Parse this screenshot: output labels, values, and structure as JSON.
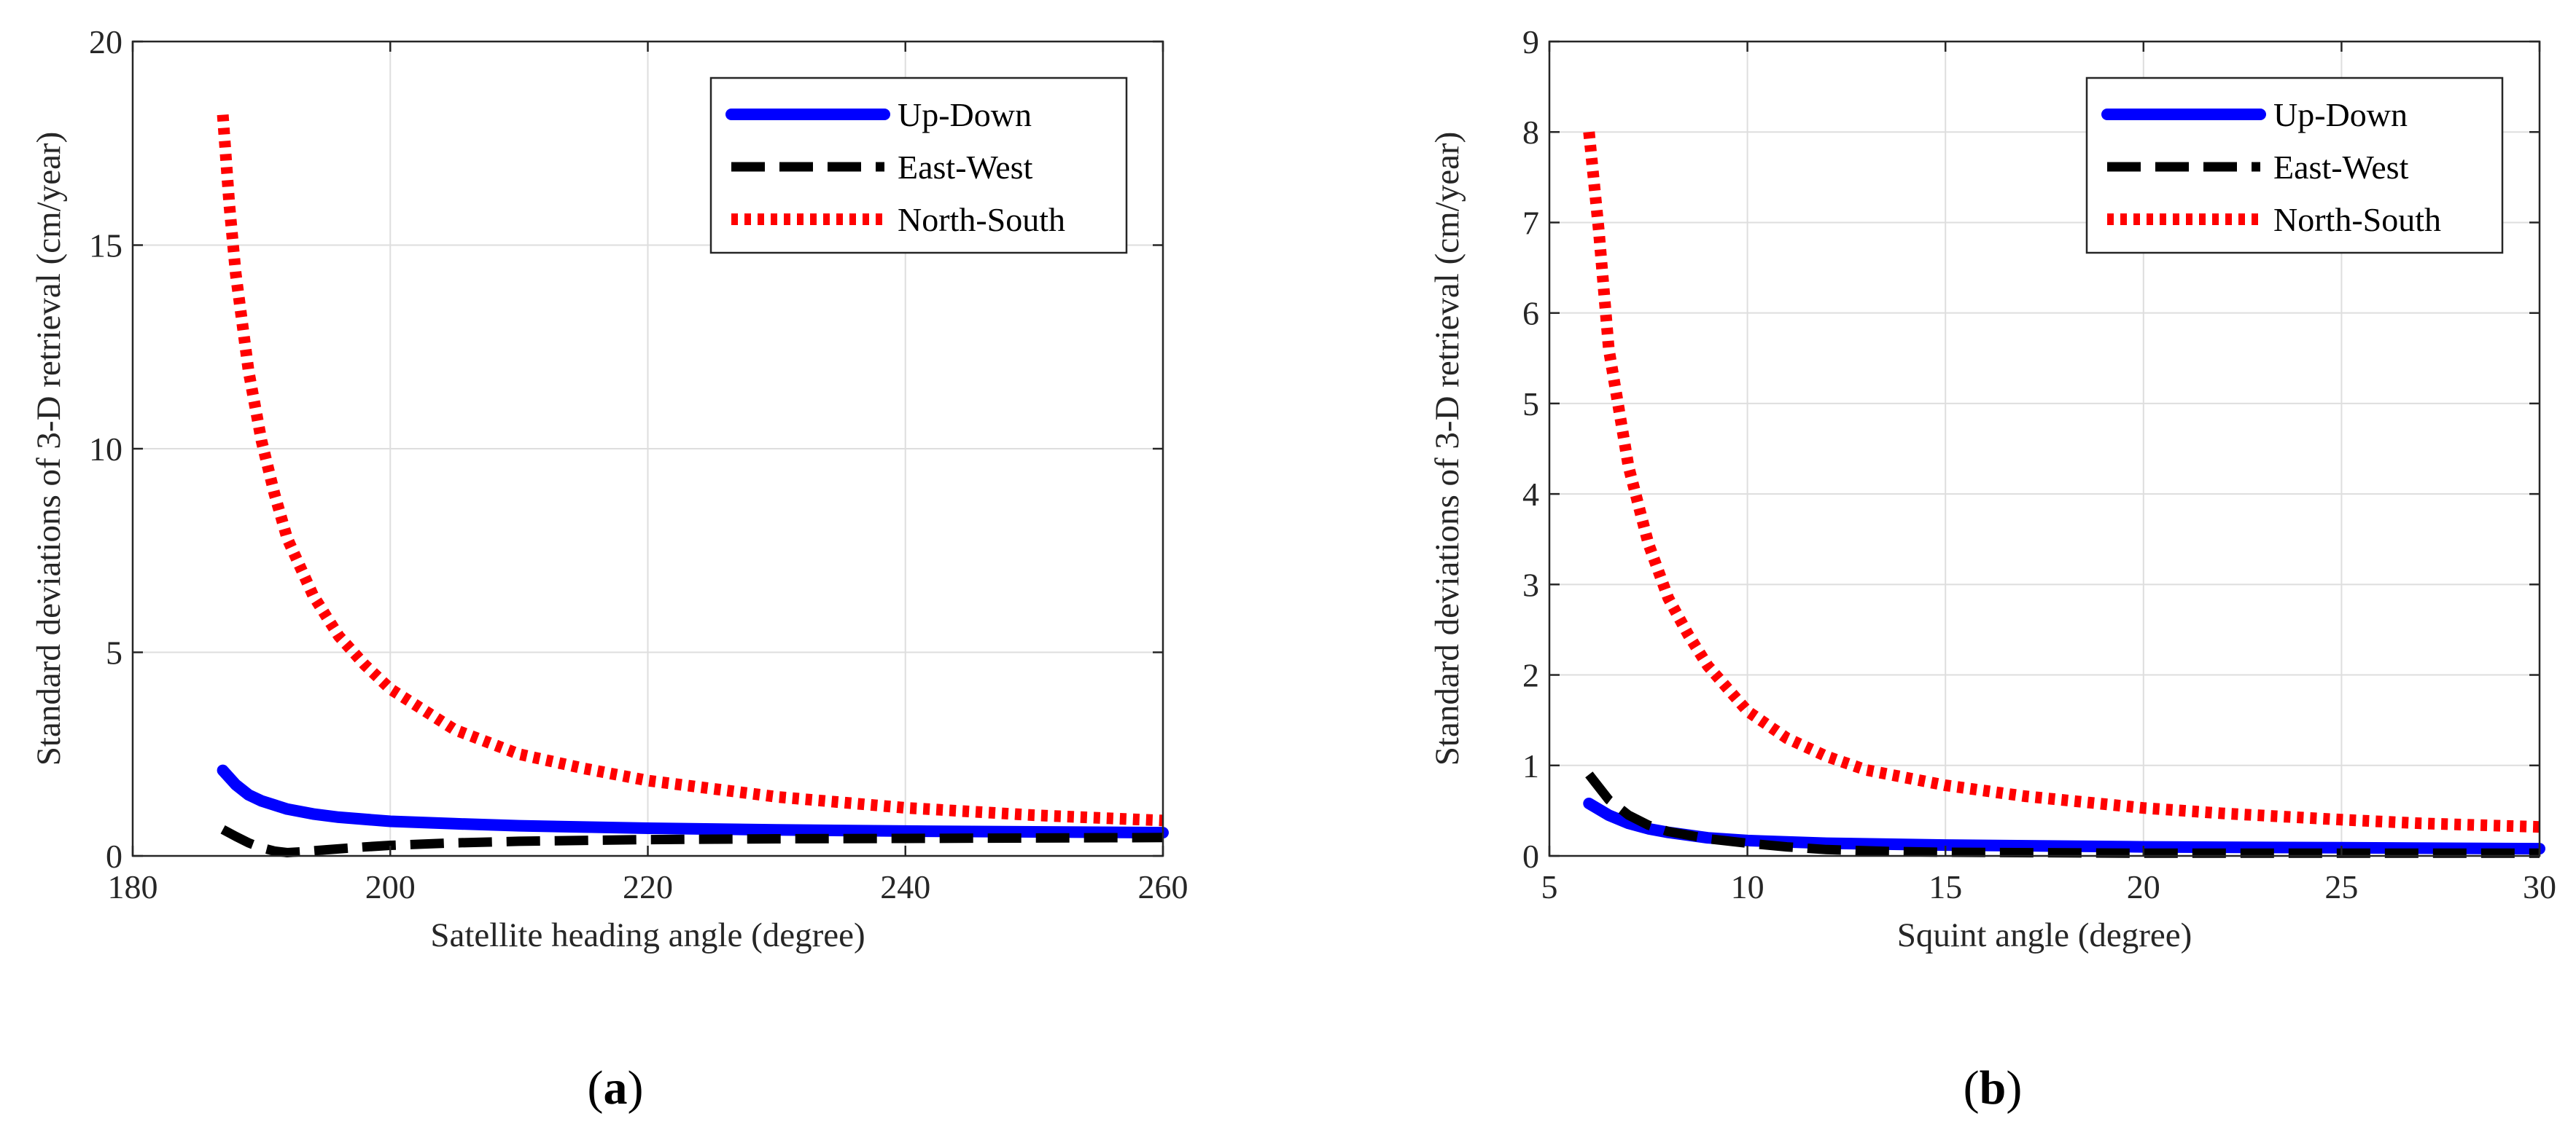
{
  "chart_data": [
    {
      "type": "line",
      "panel_id": "a",
      "caption_letter": "a",
      "xlabel": "Satellite heading angle (degree)",
      "ylabel": "Standard deviations of 3-D retrieval (cm/year)",
      "xlim": [
        180,
        260
      ],
      "ylim": [
        0,
        20
      ],
      "xticks": [
        180,
        200,
        220,
        240,
        260
      ],
      "yticks": [
        0,
        5,
        10,
        15,
        20
      ],
      "grid": true,
      "legend_position": "top-right",
      "series": [
        {
          "name": "Up-Down",
          "color": "#0000ff",
          "style": "solid",
          "x": [
            187,
            188,
            189,
            190,
            192,
            194,
            196,
            200,
            205,
            210,
            220,
            230,
            240,
            250,
            260
          ],
          "y": [
            2.1,
            1.75,
            1.5,
            1.35,
            1.15,
            1.03,
            0.95,
            0.85,
            0.79,
            0.74,
            0.68,
            0.64,
            0.61,
            0.59,
            0.57
          ]
        },
        {
          "name": "East-West",
          "color": "#000000",
          "style": "dashed",
          "x": [
            187,
            188,
            189,
            190,
            191,
            192,
            193,
            195,
            198,
            200,
            205,
            210,
            220,
            230,
            240,
            250,
            260
          ],
          "y": [
            0.65,
            0.48,
            0.32,
            0.2,
            0.12,
            0.08,
            0.1,
            0.15,
            0.22,
            0.26,
            0.32,
            0.36,
            0.4,
            0.42,
            0.43,
            0.44,
            0.45
          ]
        },
        {
          "name": "North-South",
          "color": "#ff0000",
          "style": "dotted",
          "x": [
            187,
            187.5,
            188,
            189,
            190,
            191,
            192,
            194,
            196,
            198,
            200,
            205,
            210,
            215,
            220,
            230,
            240,
            250,
            260
          ],
          "y": [
            18.2,
            16.0,
            14.3,
            11.9,
            10.2,
            8.9,
            7.8,
            6.4,
            5.4,
            4.7,
            4.1,
            3.1,
            2.5,
            2.15,
            1.85,
            1.45,
            1.18,
            1.0,
            0.87
          ]
        }
      ]
    },
    {
      "type": "line",
      "panel_id": "b",
      "caption_letter": "b",
      "xlabel": "Squint angle (degree)",
      "ylabel": "Standard deviations of 3-D retrieval (cm/year)",
      "xlim": [
        5,
        30
      ],
      "ylim": [
        0,
        9
      ],
      "xticks": [
        5,
        10,
        15,
        20,
        25,
        30
      ],
      "yticks": [
        0,
        1,
        2,
        3,
        4,
        5,
        6,
        7,
        8,
        9
      ],
      "grid": true,
      "legend_position": "top-right",
      "series": [
        {
          "name": "Up-Down",
          "color": "#0000ff",
          "style": "solid",
          "x": [
            6,
            6.5,
            7,
            7.5,
            8,
            9,
            10,
            12,
            15,
            20,
            25,
            30
          ],
          "y": [
            0.58,
            0.45,
            0.36,
            0.3,
            0.26,
            0.2,
            0.17,
            0.14,
            0.12,
            0.1,
            0.09,
            0.08
          ]
        },
        {
          "name": "East-West",
          "color": "#000000",
          "style": "dashed",
          "x": [
            6,
            6.5,
            7,
            7.5,
            8,
            9,
            10,
            11,
            12,
            13.5,
            15,
            20,
            25,
            30
          ],
          "y": [
            0.9,
            0.62,
            0.45,
            0.34,
            0.27,
            0.19,
            0.14,
            0.1,
            0.07,
            0.05,
            0.04,
            0.03,
            0.03,
            0.03
          ]
        },
        {
          "name": "North-South",
          "color": "#ff0000",
          "style": "dotted",
          "x": [
            6,
            6.25,
            6.5,
            7,
            7.5,
            8,
            8.5,
            9,
            10,
            11,
            12,
            13,
            15,
            17,
            20,
            22,
            25,
            27,
            30
          ],
          "y": [
            8.0,
            6.9,
            5.6,
            4.3,
            3.45,
            2.85,
            2.45,
            2.1,
            1.6,
            1.3,
            1.1,
            0.95,
            0.78,
            0.66,
            0.53,
            0.47,
            0.4,
            0.36,
            0.32
          ]
        }
      ]
    }
  ]
}
